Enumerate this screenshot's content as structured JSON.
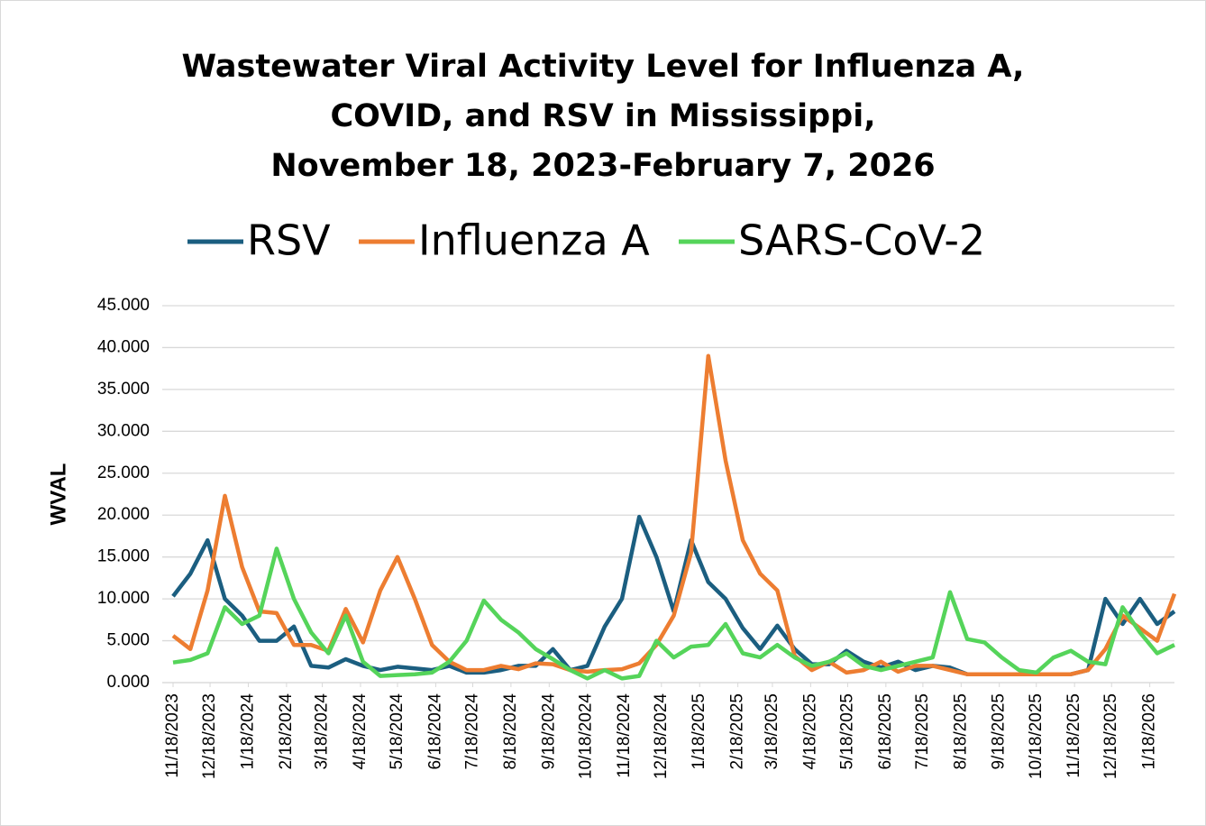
{
  "chart_data": {
    "type": "line",
    "title": [
      "Wastewater Viral Activity Level for Influenza A,",
      "COVID, and RSV  in Mississippi,",
      "November 18, 2023-February 7, 2026"
    ],
    "y_label": "WVAL",
    "x": [
      "11/18/2023",
      "12/2/2023",
      "12/16/2023",
      "12/30/2023",
      "1/13/2024",
      "1/27/2024",
      "2/10/2024",
      "2/24/2024",
      "3/9/2024",
      "3/23/2024",
      "4/6/2024",
      "4/20/2024",
      "5/4/2024",
      "5/18/2024",
      "6/1/2024",
      "6/15/2024",
      "6/29/2024",
      "7/13/2024",
      "7/27/2024",
      "8/10/2024",
      "8/24/2024",
      "9/7/2024",
      "9/21/2024",
      "10/5/2024",
      "10/19/2024",
      "11/2/2024",
      "11/16/2024",
      "11/30/2024",
      "12/14/2024",
      "12/28/2024",
      "1/11/2025",
      "1/25/2025",
      "2/8/2025",
      "2/22/2025",
      "3/8/2025",
      "3/22/2025",
      "4/5/2025",
      "4/19/2025",
      "5/3/2025",
      "5/17/2025",
      "5/31/2025",
      "6/14/2025",
      "6/28/2025",
      "7/12/2025",
      "7/26/2025",
      "8/9/2025",
      "8/23/2025",
      "9/6/2025",
      "9/20/2025",
      "10/4/2025",
      "10/18/2025",
      "11/1/2025",
      "11/15/2025",
      "11/29/2025",
      "12/13/2025",
      "12/27/2025",
      "1/10/2026",
      "1/24/2026",
      "2/7/2026"
    ],
    "series": [
      {
        "name": "RSV",
        "color": "#1b5e80",
        "values": [
          10.3,
          13,
          17,
          10,
          8,
          5,
          5,
          6.7,
          2,
          1.8,
          2.8,
          2,
          1.5,
          1.9,
          1.7,
          1.5,
          2,
          1.2,
          1.2,
          1.5,
          2,
          2,
          4,
          1.5,
          2,
          6.7,
          10,
          19.8,
          15,
          8.5,
          17,
          12,
          10,
          6.5,
          4,
          6.8,
          4,
          2.2,
          2.2,
          3.8,
          2.5,
          1.8,
          2.5,
          1.5,
          2,
          1.8,
          1,
          1,
          1,
          1,
          1,
          1,
          1,
          1.5,
          10,
          7,
          10,
          7,
          8.5
        ]
      },
      {
        "name": "Influenza A",
        "color": "#ed7d31",
        "values": [
          5.6,
          4,
          11,
          22.3,
          13.8,
          8.5,
          8.3,
          4.5,
          4.5,
          3.8,
          8.8,
          4.8,
          11,
          15,
          10,
          4.5,
          2.5,
          1.5,
          1.5,
          2,
          1.6,
          2.3,
          2.2,
          1.5,
          1.3,
          1.5,
          1.6,
          2.3,
          4.5,
          8,
          15.5,
          39,
          26.5,
          17,
          13,
          11,
          3.2,
          1.5,
          2.5,
          1.2,
          1.5,
          2.5,
          1.3,
          2,
          2,
          1.5,
          1,
          1,
          1,
          1,
          1,
          1,
          1,
          1.5,
          4,
          8,
          6.5,
          5,
          10.6
        ]
      },
      {
        "name": "SARS-CoV-2",
        "color": "#55d45a",
        "values": [
          2.4,
          2.7,
          3.5,
          9,
          7,
          8,
          16,
          10,
          6,
          3.5,
          8,
          2.5,
          0.8,
          0.9,
          1,
          1.2,
          2.5,
          5,
          9.8,
          7.5,
          6,
          4,
          2.8,
          1.5,
          0.5,
          1.5,
          0.5,
          0.8,
          5,
          3,
          4.3,
          4.5,
          7,
          3.5,
          3,
          4.5,
          3,
          2,
          2.5,
          3.5,
          2,
          1.5,
          2,
          2.5,
          3,
          10.8,
          5.2,
          4.8,
          3,
          1.5,
          1.2,
          3,
          3.8,
          2.5,
          2.2,
          9,
          6,
          3.5,
          4.5
        ]
      }
    ],
    "xlim": [
      "11/18/2023",
      "2/7/2026"
    ],
    "xticks": [
      "11/18/2023",
      "12/18/2023",
      "1/18/2024",
      "2/18/2024",
      "3/18/2024",
      "4/18/2024",
      "5/18/2024",
      "6/18/2024",
      "7/18/2024",
      "8/18/2024",
      "9/18/2024",
      "10/18/2024",
      "11/18/2024",
      "12/18/2024",
      "1/18/2025",
      "2/18/2025",
      "3/18/2025",
      "4/18/2025",
      "5/18/2025",
      "6/18/2025",
      "7/18/2025",
      "8/18/2025",
      "9/18/2025",
      "10/18/2025",
      "11/18/2025",
      "12/18/2025",
      "1/18/2026"
    ],
    "ylim": [
      0,
      45
    ],
    "yticks": [
      {
        "value": 0,
        "label": "0.000"
      },
      {
        "value": 5,
        "label": "5.000"
      },
      {
        "value": 10,
        "label": "10.000"
      },
      {
        "value": 15,
        "label": "15.000"
      },
      {
        "value": 20,
        "label": "20.000"
      },
      {
        "value": 25,
        "label": "25.000"
      },
      {
        "value": 30,
        "label": "30.000"
      },
      {
        "value": 35,
        "label": "35.000"
      },
      {
        "value": 40,
        "label": "40.000"
      },
      {
        "value": 45,
        "label": "45.000"
      }
    ],
    "grid": true,
    "legend": "top"
  }
}
